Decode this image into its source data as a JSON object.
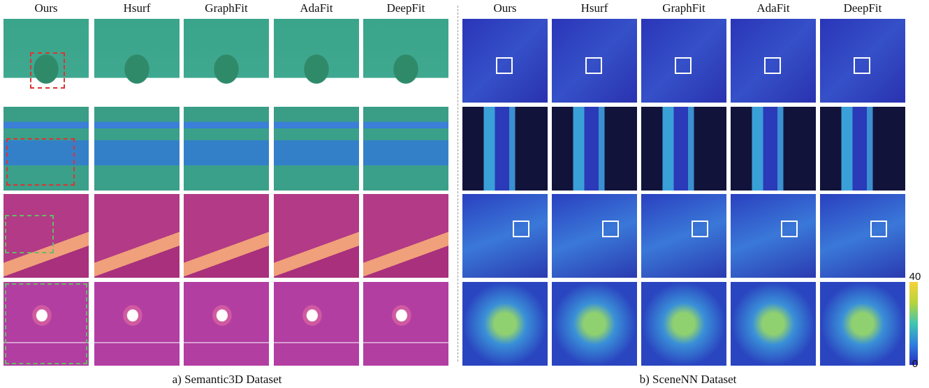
{
  "left": {
    "headers": [
      "Ours",
      "Hsurf",
      "GraphFit",
      "AdaFit",
      "DeepFit"
    ],
    "caption": "a) Semantic3D Dataset"
  },
  "right": {
    "headers": [
      "Ours",
      "Hsurf",
      "GraphFit",
      "AdaFit",
      "DeepFit"
    ],
    "caption": "b) SceneNN Dataset"
  },
  "colorbar": {
    "max": 40,
    "min": 0
  }
}
